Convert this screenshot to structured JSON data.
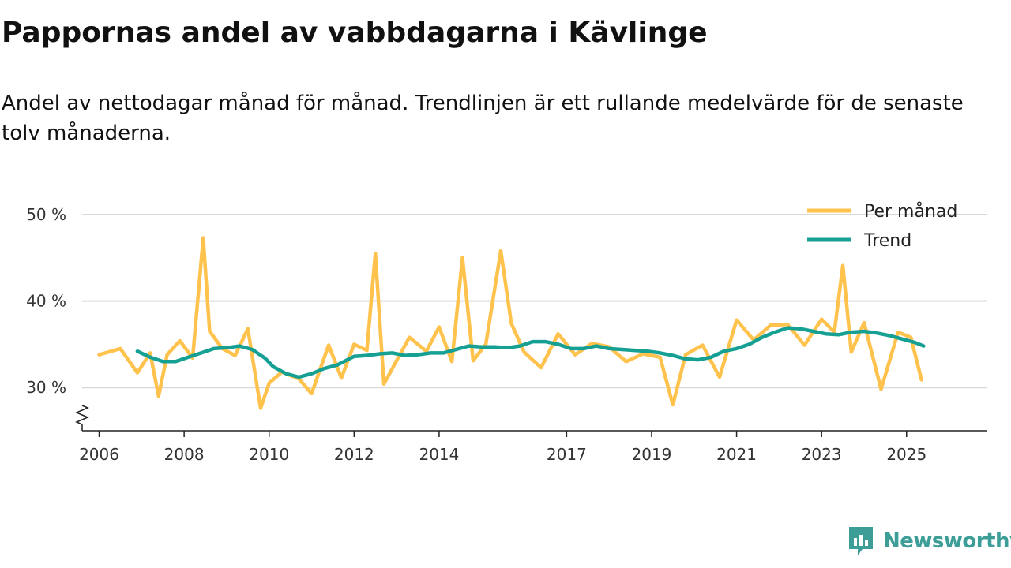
{
  "title": "Pappornas andel av vabbdagarna i Kävlinge",
  "subtitle": "Andel av nettodagar månad för månad. Trendlinjen är ett rullande medelvärde för de senaste tolv månaderna.",
  "brand": {
    "name": "Newsworthy"
  },
  "colors": {
    "monthly": "#ffc24d",
    "trend": "#169f93",
    "grid": "#d9d9d9",
    "axis": "#222222",
    "brand": "#3d9e98"
  },
  "chart_data": {
    "type": "line",
    "title": "Pappornas andel av vabbdagarna i Kävlinge",
    "xlabel": "",
    "ylabel": "",
    "ylim": [
      25,
      50
    ],
    "xlim": [
      2005.6,
      2026.9
    ],
    "y_axis_broken": true,
    "grid": "horizontal",
    "legend_position": "top-right",
    "y_ticks": [
      {
        "value": 30,
        "label": "30 %"
      },
      {
        "value": 40,
        "label": "40 %"
      },
      {
        "value": 50,
        "label": "50 %"
      }
    ],
    "x_ticks": [
      {
        "value": 2006,
        "label": "2006"
      },
      {
        "value": 2008,
        "label": "2008"
      },
      {
        "value": 2010,
        "label": "2010"
      },
      {
        "value": 2012,
        "label": "2012"
      },
      {
        "value": 2014,
        "label": "2014"
      },
      {
        "value": 2017,
        "label": "2017"
      },
      {
        "value": 2019,
        "label": "2019"
      },
      {
        "value": 2021,
        "label": "2021"
      },
      {
        "value": 2023,
        "label": "2023"
      },
      {
        "value": 2025,
        "label": "2025"
      }
    ],
    "series": [
      {
        "name": "Per månad",
        "x": [
          2006.0,
          2006.5,
          2006.9,
          2007.2,
          2007.4,
          2007.6,
          2007.9,
          2008.2,
          2008.45,
          2008.6,
          2008.9,
          2009.2,
          2009.5,
          2009.8,
          2010.0,
          2010.3,
          2010.7,
          2011.0,
          2011.4,
          2011.7,
          2012.0,
          2012.3,
          2012.5,
          2012.7,
          2013.0,
          2013.3,
          2013.7,
          2014.0,
          2014.3,
          2014.55,
          2014.8,
          2015.1,
          2015.45,
          2015.7,
          2016.0,
          2016.4,
          2016.8,
          2017.2,
          2017.6,
          2018.0,
          2018.4,
          2018.8,
          2019.2,
          2019.5,
          2019.8,
          2020.2,
          2020.6,
          2021.0,
          2021.4,
          2021.8,
          2022.2,
          2022.6,
          2023.0,
          2023.3,
          2023.5,
          2023.7,
          2024.0,
          2024.4,
          2024.8,
          2025.1,
          2025.35
        ],
        "values": [
          33.8,
          34.5,
          31.7,
          34.0,
          29.0,
          33.8,
          35.4,
          33.4,
          47.3,
          36.5,
          34.5,
          33.7,
          36.8,
          27.6,
          30.5,
          31.8,
          31.0,
          29.3,
          34.9,
          31.1,
          35.0,
          34.3,
          45.5,
          30.4,
          33.1,
          35.8,
          34.2,
          37.0,
          33.0,
          45.0,
          33.1,
          35.0,
          45.8,
          37.4,
          34.1,
          32.3,
          36.2,
          33.8,
          35.1,
          34.7,
          33.0,
          33.9,
          33.5,
          28.0,
          33.8,
          34.9,
          31.2,
          37.8,
          35.5,
          37.2,
          37.3,
          34.9,
          37.9,
          36.4,
          44.1,
          34.1,
          37.5,
          29.8,
          36.4,
          35.8,
          30.9
        ]
      },
      {
        "name": "Trend",
        "x": [
          2006.9,
          2007.2,
          2007.5,
          2007.8,
          2008.1,
          2008.4,
          2008.7,
          2009.0,
          2009.3,
          2009.6,
          2009.9,
          2010.1,
          2010.4,
          2010.7,
          2011.0,
          2011.3,
          2011.6,
          2012.0,
          2012.3,
          2012.6,
          2012.9,
          2013.2,
          2013.5,
          2013.8,
          2014.1,
          2014.4,
          2014.7,
          2015.0,
          2015.3,
          2015.6,
          2015.9,
          2016.2,
          2016.5,
          2016.8,
          2017.1,
          2017.4,
          2017.7,
          2018.0,
          2018.3,
          2018.6,
          2018.9,
          2019.2,
          2019.5,
          2019.8,
          2020.1,
          2020.4,
          2020.7,
          2021.0,
          2021.3,
          2021.6,
          2021.9,
          2022.2,
          2022.5,
          2022.8,
          2023.1,
          2023.4,
          2023.7,
          2024.0,
          2024.3,
          2024.6,
          2024.9,
          2025.2,
          2025.4
        ],
        "values": [
          34.2,
          33.5,
          33.0,
          33.0,
          33.5,
          34.0,
          34.5,
          34.6,
          34.8,
          34.4,
          33.4,
          32.4,
          31.6,
          31.2,
          31.6,
          32.2,
          32.6,
          33.6,
          33.7,
          33.9,
          34.0,
          33.7,
          33.8,
          34.0,
          34.0,
          34.4,
          34.8,
          34.7,
          34.7,
          34.6,
          34.8,
          35.3,
          35.3,
          35.0,
          34.5,
          34.5,
          34.8,
          34.5,
          34.4,
          34.3,
          34.2,
          34.0,
          33.7,
          33.3,
          33.2,
          33.5,
          34.2,
          34.5,
          35.0,
          35.8,
          36.4,
          36.9,
          36.8,
          36.5,
          36.2,
          36.1,
          36.4,
          36.5,
          36.3,
          36.0,
          35.6,
          35.2,
          34.8
        ]
      }
    ]
  }
}
